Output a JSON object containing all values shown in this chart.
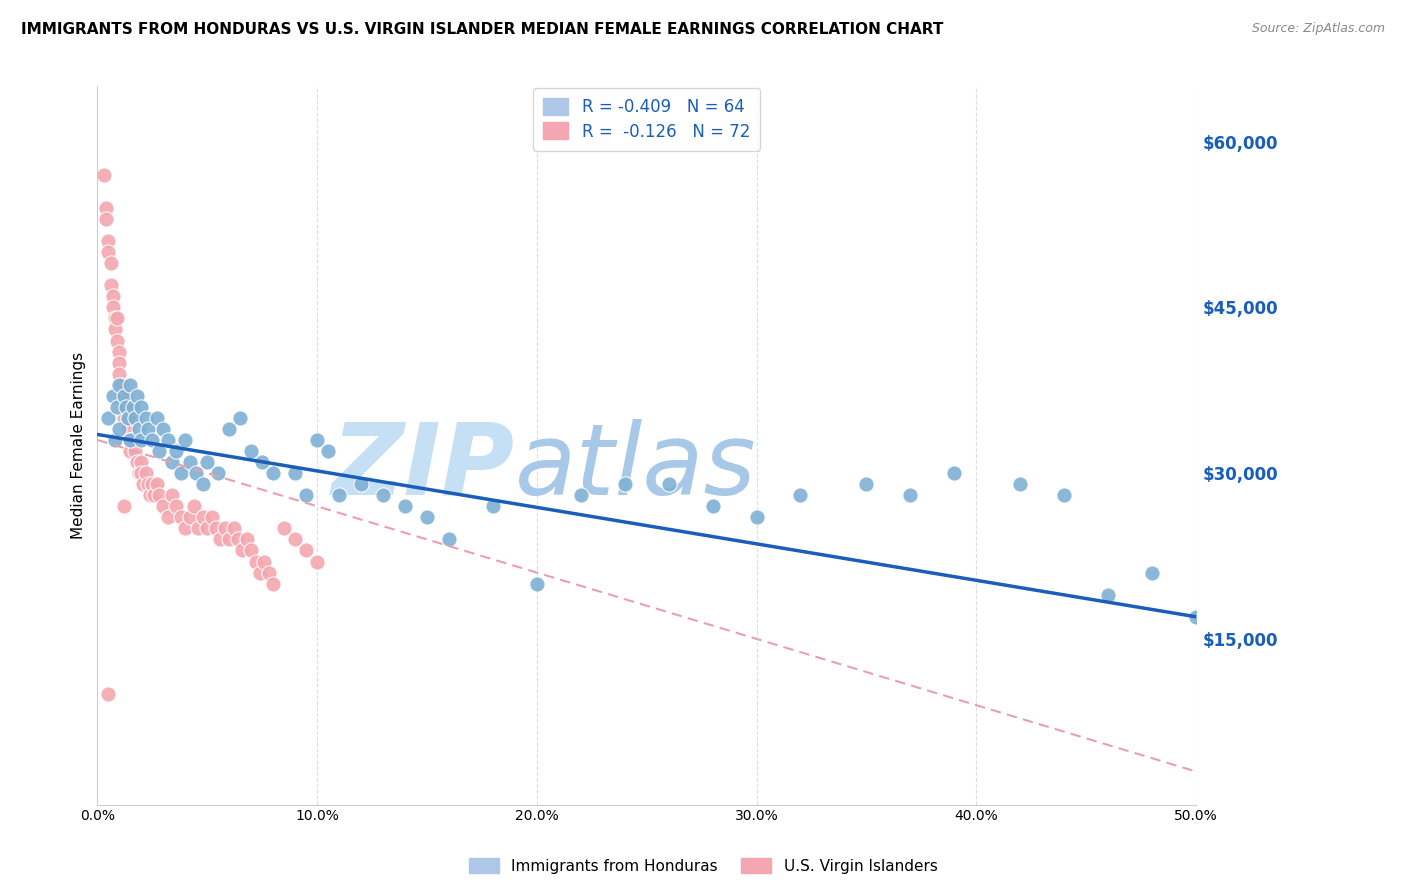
{
  "title": "IMMIGRANTS FROM HONDURAS VS U.S. VIRGIN ISLANDER MEDIAN FEMALE EARNINGS CORRELATION CHART",
  "source": "Source: ZipAtlas.com",
  "ylabel": "Median Female Earnings",
  "yticks": [
    0,
    15000,
    30000,
    45000,
    60000
  ],
  "ytick_labels": [
    "",
    "$15,000",
    "$30,000",
    "$45,000",
    "$60,000"
  ],
  "xlim": [
    0.0,
    0.5
  ],
  "ylim": [
    0,
    65000
  ],
  "blue_scatter_x": [
    0.005,
    0.007,
    0.008,
    0.009,
    0.01,
    0.01,
    0.012,
    0.013,
    0.014,
    0.015,
    0.015,
    0.016,
    0.017,
    0.018,
    0.019,
    0.02,
    0.02,
    0.022,
    0.023,
    0.025,
    0.027,
    0.028,
    0.03,
    0.032,
    0.034,
    0.036,
    0.038,
    0.04,
    0.042,
    0.045,
    0.048,
    0.05,
    0.055,
    0.06,
    0.065,
    0.07,
    0.075,
    0.08,
    0.09,
    0.095,
    0.1,
    0.105,
    0.11,
    0.12,
    0.13,
    0.14,
    0.15,
    0.16,
    0.18,
    0.2,
    0.22,
    0.24,
    0.26,
    0.28,
    0.3,
    0.32,
    0.35,
    0.37,
    0.39,
    0.42,
    0.44,
    0.46,
    0.48,
    0.5
  ],
  "blue_scatter_y": [
    35000,
    37000,
    33000,
    36000,
    38000,
    34000,
    37000,
    36000,
    35000,
    38000,
    33000,
    36000,
    35000,
    37000,
    34000,
    36000,
    33000,
    35000,
    34000,
    33000,
    35000,
    32000,
    34000,
    33000,
    31000,
    32000,
    30000,
    33000,
    31000,
    30000,
    29000,
    31000,
    30000,
    34000,
    35000,
    32000,
    31000,
    30000,
    30000,
    28000,
    33000,
    32000,
    28000,
    29000,
    28000,
    27000,
    26000,
    24000,
    27000,
    20000,
    28000,
    29000,
    29000,
    27000,
    26000,
    28000,
    29000,
    28000,
    30000,
    29000,
    28000,
    19000,
    21000,
    17000
  ],
  "pink_scatter_x": [
    0.003,
    0.004,
    0.004,
    0.005,
    0.005,
    0.006,
    0.006,
    0.007,
    0.007,
    0.008,
    0.008,
    0.009,
    0.009,
    0.01,
    0.01,
    0.01,
    0.011,
    0.011,
    0.012,
    0.012,
    0.013,
    0.013,
    0.014,
    0.014,
    0.015,
    0.015,
    0.016,
    0.017,
    0.018,
    0.019,
    0.02,
    0.02,
    0.021,
    0.022,
    0.023,
    0.024,
    0.025,
    0.026,
    0.027,
    0.028,
    0.03,
    0.032,
    0.034,
    0.036,
    0.038,
    0.04,
    0.042,
    0.044,
    0.046,
    0.048,
    0.05,
    0.052,
    0.054,
    0.056,
    0.058,
    0.06,
    0.062,
    0.064,
    0.066,
    0.068,
    0.07,
    0.072,
    0.074,
    0.076,
    0.078,
    0.08,
    0.085,
    0.09,
    0.095,
    0.1,
    0.005,
    0.012
  ],
  "pink_scatter_y": [
    57000,
    54000,
    53000,
    51000,
    50000,
    49000,
    47000,
    46000,
    45000,
    44000,
    43000,
    44000,
    42000,
    41000,
    40000,
    39000,
    38000,
    37000,
    36000,
    35000,
    37000,
    36000,
    35000,
    34000,
    33000,
    32000,
    33000,
    32000,
    31000,
    30000,
    31000,
    30000,
    29000,
    30000,
    29000,
    28000,
    29000,
    28000,
    29000,
    28000,
    27000,
    26000,
    28000,
    27000,
    26000,
    25000,
    26000,
    27000,
    25000,
    26000,
    25000,
    26000,
    25000,
    24000,
    25000,
    24000,
    25000,
    24000,
    23000,
    24000,
    23000,
    22000,
    21000,
    22000,
    21000,
    20000,
    25000,
    24000,
    23000,
    22000,
    10000,
    27000
  ],
  "blue_line_x": [
    0.0,
    0.5
  ],
  "blue_line_y": [
    33500,
    17000
  ],
  "pink_line_x": [
    0.0,
    0.5
  ],
  "pink_line_y": [
    33000,
    3000
  ],
  "scatter_blue_color": "#7eb0d4",
  "scatter_pink_color": "#f4a7b0",
  "line_blue_color": "#1a5eb8",
  "line_pink_color": "#e8a0b0",
  "watermark_zip_color": "#c5dff5",
  "watermark_atlas_color": "#a8c8e8",
  "title_fontsize": 11,
  "legend_label_color": "#1a5eb8",
  "tick_label_color": "#1a5eb8",
  "background_color": "#ffffff",
  "grid_color": "#dddddd"
}
